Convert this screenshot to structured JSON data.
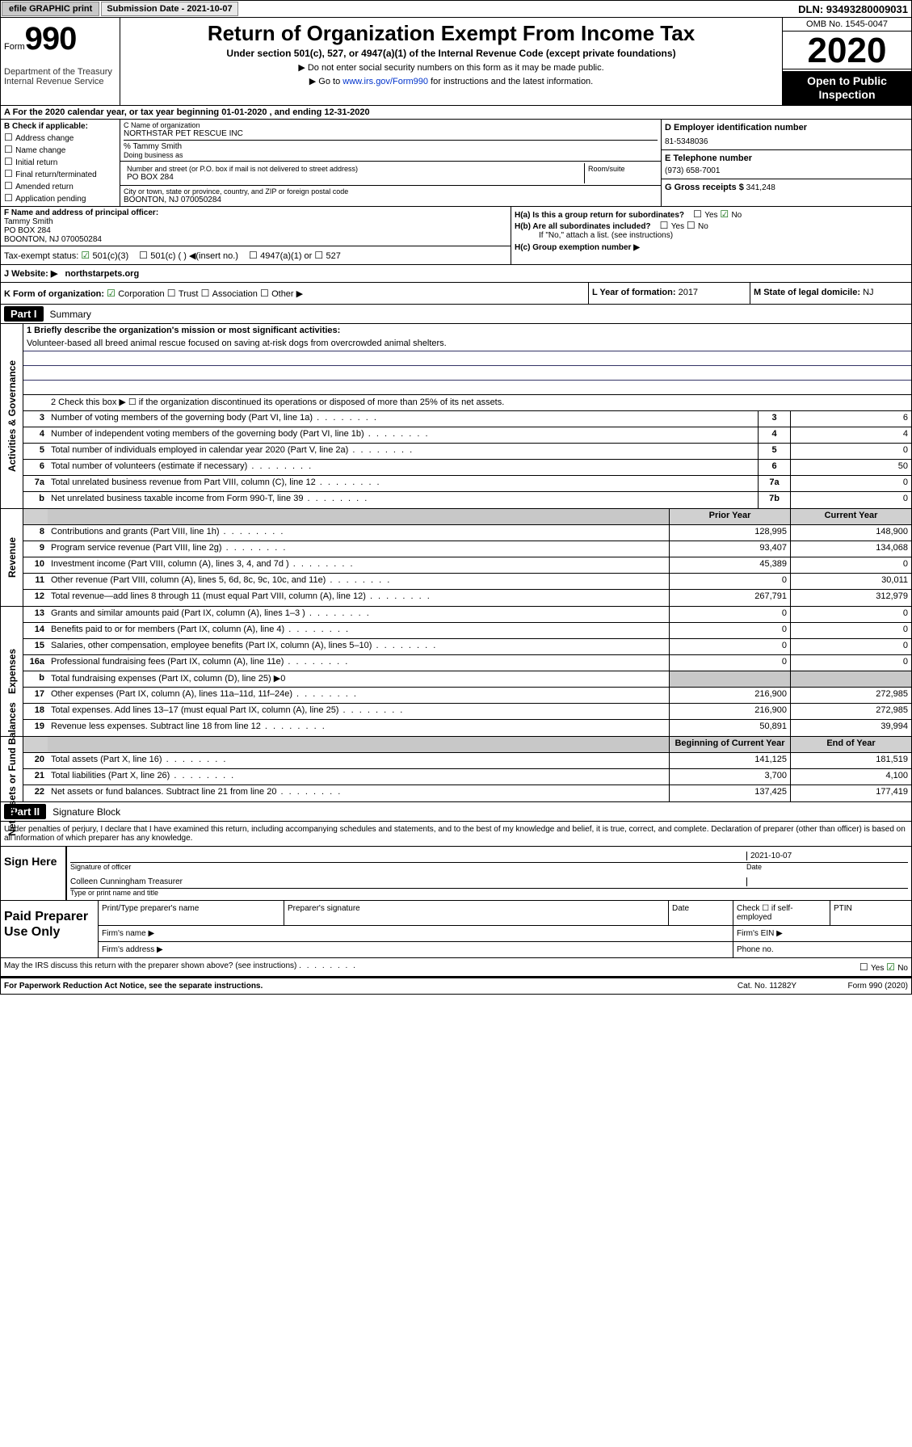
{
  "topbar": {
    "efile": "efile GRAPHIC print",
    "subdate_label": "Submission Date - 2021-10-07",
    "dln": "DLN: 93493280009031"
  },
  "header": {
    "form_prefix": "Form",
    "form_number": "990",
    "dept": "Department of the Treasury\nInternal Revenue Service",
    "title": "Return of Organization Exempt From Income Tax",
    "subtitle": "Under section 501(c), 527, or 4947(a)(1) of the Internal Revenue Code (except private foundations)",
    "note1": "▶ Do not enter social security numbers on this form as it may be made public.",
    "note2_prefix": "▶ Go to ",
    "note2_link": "www.irs.gov/Form990",
    "note2_suffix": " for instructions and the latest information.",
    "omb": "OMB No. 1545-0047",
    "year": "2020",
    "inspection": "Open to Public Inspection"
  },
  "rowA": "A For the 2020 calendar year, or tax year beginning 01-01-2020    , and ending 12-31-2020",
  "B": {
    "label": "B Check if applicable:",
    "items": [
      "Address change",
      "Name change",
      "Initial return",
      "Final return/terminated",
      "Amended return",
      "Application pending"
    ]
  },
  "C": {
    "name_label": "C Name of organization",
    "name": "NORTHSTAR PET RESCUE INC",
    "care": "% Tammy Smith",
    "dba_label": "Doing business as",
    "addr_label": "Number and street (or P.O. box if mail is not delivered to street address)",
    "room_label": "Room/suite",
    "addr": "PO BOX 284",
    "city_label": "City or town, state or province, country, and ZIP or foreign postal code",
    "city": "BOONTON, NJ  070050284"
  },
  "D": {
    "label": "D Employer identification number",
    "val": "81-5348036"
  },
  "E": {
    "label": "E Telephone number",
    "val": "(973) 658-7001"
  },
  "G": {
    "label": "G Gross receipts $",
    "val": "341,248"
  },
  "F": {
    "label": "F  Name and address of principal officer:",
    "name": "Tammy Smith",
    "addr": "PO BOX 284\nBOONTON, NJ  070050284"
  },
  "H": {
    "a": "H(a)  Is this a group return for subordinates?",
    "ayes": "Yes",
    "ano": "No",
    "b": "H(b)  Are all subordinates included?",
    "bnote": "If \"No,\" attach a list. (see instructions)",
    "c": "H(c)  Group exemption number ▶"
  },
  "tax": {
    "label": "Tax-exempt status:",
    "a": "501(c)(3)",
    "b": "501(c) (   ) ◀(insert no.)",
    "c": "4947(a)(1) or",
    "d": "527"
  },
  "J": {
    "label": "J  Website: ▶",
    "val": "northstarpets.org"
  },
  "K": {
    "label": "K Form of organization:",
    "corp": "Corporation",
    "trust": "Trust",
    "assoc": "Association",
    "other": "Other ▶"
  },
  "L": {
    "label": "L Year of formation:",
    "val": "2017"
  },
  "M": {
    "label": "M State of legal domicile:",
    "val": "NJ"
  },
  "partI": {
    "num": "Part I",
    "title": "Summary"
  },
  "summary": {
    "line1_label": "1  Briefly describe the organization's mission or most significant activities:",
    "mission": "Volunteer-based all breed animal rescue focused on saving at-risk dogs from overcrowded animal shelters.",
    "line2": "2   Check this box ▶ ☐  if the organization discontinued its operations or disposed of more than 25% of its net assets.",
    "lines": [
      {
        "n": "3",
        "d": "Number of voting members of the governing body (Part VI, line 1a)",
        "box": "3",
        "v": "6"
      },
      {
        "n": "4",
        "d": "Number of independent voting members of the governing body (Part VI, line 1b)",
        "box": "4",
        "v": "4"
      },
      {
        "n": "5",
        "d": "Total number of individuals employed in calendar year 2020 (Part V, line 2a)",
        "box": "5",
        "v": "0"
      },
      {
        "n": "6",
        "d": "Total number of volunteers (estimate if necessary)",
        "box": "6",
        "v": "50"
      },
      {
        "n": "7a",
        "d": "Total unrelated business revenue from Part VIII, column (C), line 12",
        "box": "7a",
        "v": "0"
      },
      {
        "n": "b",
        "d": "Net unrelated business taxable income from Form 990-T, line 39",
        "box": "7b",
        "v": "0"
      }
    ],
    "hdr_prior": "Prior Year",
    "hdr_curr": "Current Year",
    "revenue": [
      {
        "n": "8",
        "d": "Contributions and grants (Part VIII, line 1h)",
        "p": "128,995",
        "c": "148,900"
      },
      {
        "n": "9",
        "d": "Program service revenue (Part VIII, line 2g)",
        "p": "93,407",
        "c": "134,068"
      },
      {
        "n": "10",
        "d": "Investment income (Part VIII, column (A), lines 3, 4, and 7d )",
        "p": "45,389",
        "c": "0"
      },
      {
        "n": "11",
        "d": "Other revenue (Part VIII, column (A), lines 5, 6d, 8c, 9c, 10c, and 11e)",
        "p": "0",
        "c": "30,011"
      },
      {
        "n": "12",
        "d": "Total revenue—add lines 8 through 11 (must equal Part VIII, column (A), line 12)",
        "p": "267,791",
        "c": "312,979"
      }
    ],
    "expenses": [
      {
        "n": "13",
        "d": "Grants and similar amounts paid (Part IX, column (A), lines 1–3 )",
        "p": "0",
        "c": "0"
      },
      {
        "n": "14",
        "d": "Benefits paid to or for members (Part IX, column (A), line 4)",
        "p": "0",
        "c": "0"
      },
      {
        "n": "15",
        "d": "Salaries, other compensation, employee benefits (Part IX, column (A), lines 5–10)",
        "p": "0",
        "c": "0"
      },
      {
        "n": "16a",
        "d": "Professional fundraising fees (Part IX, column (A), line 11e)",
        "p": "0",
        "c": "0"
      },
      {
        "n": "b",
        "d": "Total fundraising expenses (Part IX, column (D), line 25) ▶0",
        "p": "",
        "c": "",
        "shade": true
      },
      {
        "n": "17",
        "d": "Other expenses (Part IX, column (A), lines 11a–11d, 11f–24e)",
        "p": "216,900",
        "c": "272,985"
      },
      {
        "n": "18",
        "d": "Total expenses. Add lines 13–17 (must equal Part IX, column (A), line 25)",
        "p": "216,900",
        "c": "272,985"
      },
      {
        "n": "19",
        "d": "Revenue less expenses. Subtract line 18 from line 12",
        "p": "50,891",
        "c": "39,994"
      }
    ],
    "hdr_begin": "Beginning of Current Year",
    "hdr_end": "End of Year",
    "netassets": [
      {
        "n": "20",
        "d": "Total assets (Part X, line 16)",
        "p": "141,125",
        "c": "181,519"
      },
      {
        "n": "21",
        "d": "Total liabilities (Part X, line 26)",
        "p": "3,700",
        "c": "4,100"
      },
      {
        "n": "22",
        "d": "Net assets or fund balances. Subtract line 21 from line 20",
        "p": "137,425",
        "c": "177,419"
      }
    ]
  },
  "sections": {
    "ag": "Activities & Governance",
    "rev": "Revenue",
    "exp": "Expenses",
    "na": "Net Assets or Fund Balances"
  },
  "partII": {
    "num": "Part II",
    "title": "Signature Block"
  },
  "sig": {
    "perjury": "Under penalties of perjury, I declare that I have examined this return, including accompanying schedules and statements, and to the best of my knowledge and belief, it is true, correct, and complete. Declaration of preparer (other than officer) is based on all information of which preparer has any knowledge.",
    "signhere": "Sign Here",
    "date": "2021-10-07",
    "sig_label": "Signature of officer",
    "date_label": "Date",
    "officer": "Colleen Cunningham Treasurer",
    "officer_label": "Type or print name and title",
    "paid": "Paid Preparer Use Only",
    "prep_name": "Print/Type preparer's name",
    "prep_sig": "Preparer's signature",
    "prep_date": "Date",
    "prep_check": "Check ☐ if self-employed",
    "ptin": "PTIN",
    "firm_name": "Firm's name  ▶",
    "firm_ein": "Firm's EIN ▶",
    "firm_addr": "Firm's address ▶",
    "phone": "Phone no."
  },
  "footer": {
    "discuss": "May the IRS discuss this return with the preparer shown above? (see instructions)",
    "yes": "Yes",
    "no": "No",
    "paperwork": "For Paperwork Reduction Act Notice, see the separate instructions.",
    "cat": "Cat. No. 11282Y",
    "form": "Form 990 (2020)"
  }
}
